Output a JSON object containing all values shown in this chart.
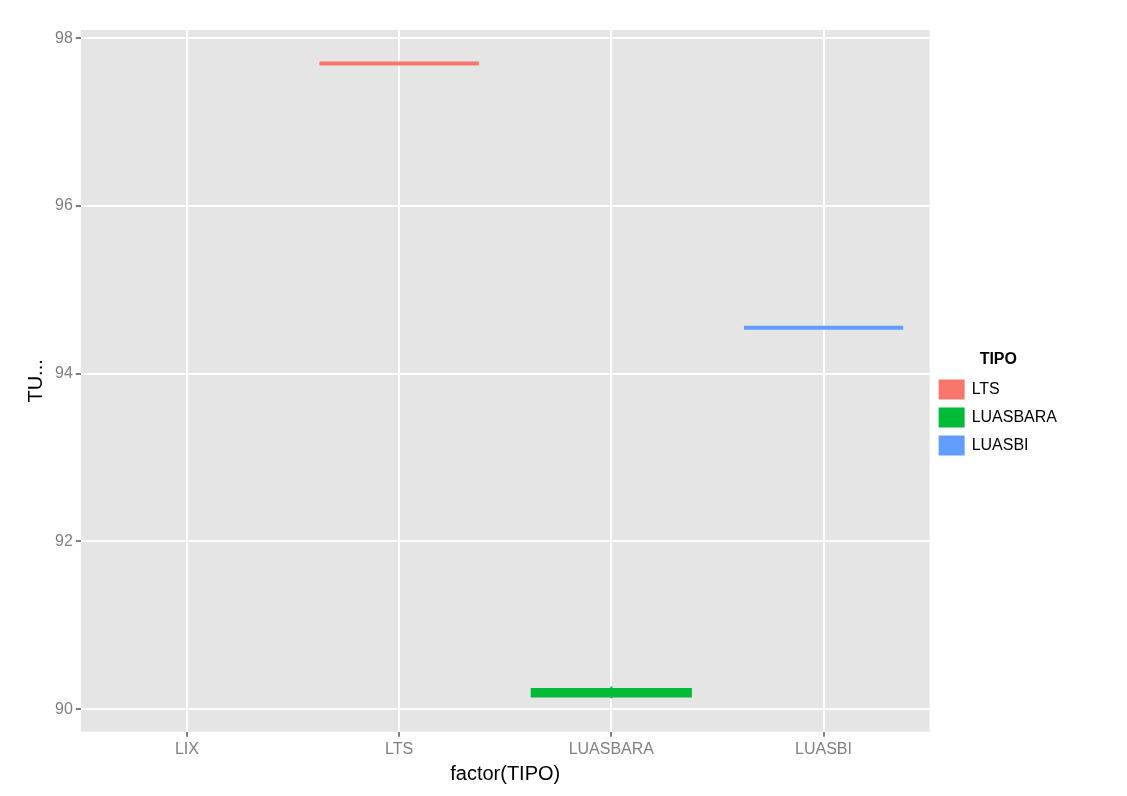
{
  "chart_data": {
    "type": "box",
    "xlabel": "factor(TIPO)",
    "ylabel": "TU...",
    "legend_title": "TIPO",
    "legend": "right",
    "grid": true,
    "categories": [
      "LIX",
      "LTS",
      "LUASBARA",
      "LUASBI"
    ],
    "ylim": [
      89.73,
      98.1
    ],
    "yticks": [
      90,
      92,
      94,
      96,
      98
    ],
    "series": [
      {
        "name": "LTS",
        "color": "#f8766d",
        "boxes": [
          null,
          {
            "low": 97.7,
            "q1": 97.7,
            "median": 97.7,
            "q3": 97.7,
            "high": 97.7
          },
          null,
          null
        ]
      },
      {
        "name": "LUASBARA",
        "color": "#00ba38",
        "boxes": [
          null,
          null,
          {
            "low": 90.13,
            "q1": 90.15,
            "median": 90.2,
            "q3": 90.24,
            "high": 90.27
          },
          null
        ]
      },
      {
        "name": "LUASBI",
        "color": "#619cff",
        "boxes": [
          null,
          null,
          null,
          {
            "low": 94.55,
            "q1": 94.55,
            "median": 94.55,
            "q3": 94.55,
            "high": 94.55
          }
        ]
      }
    ]
  }
}
